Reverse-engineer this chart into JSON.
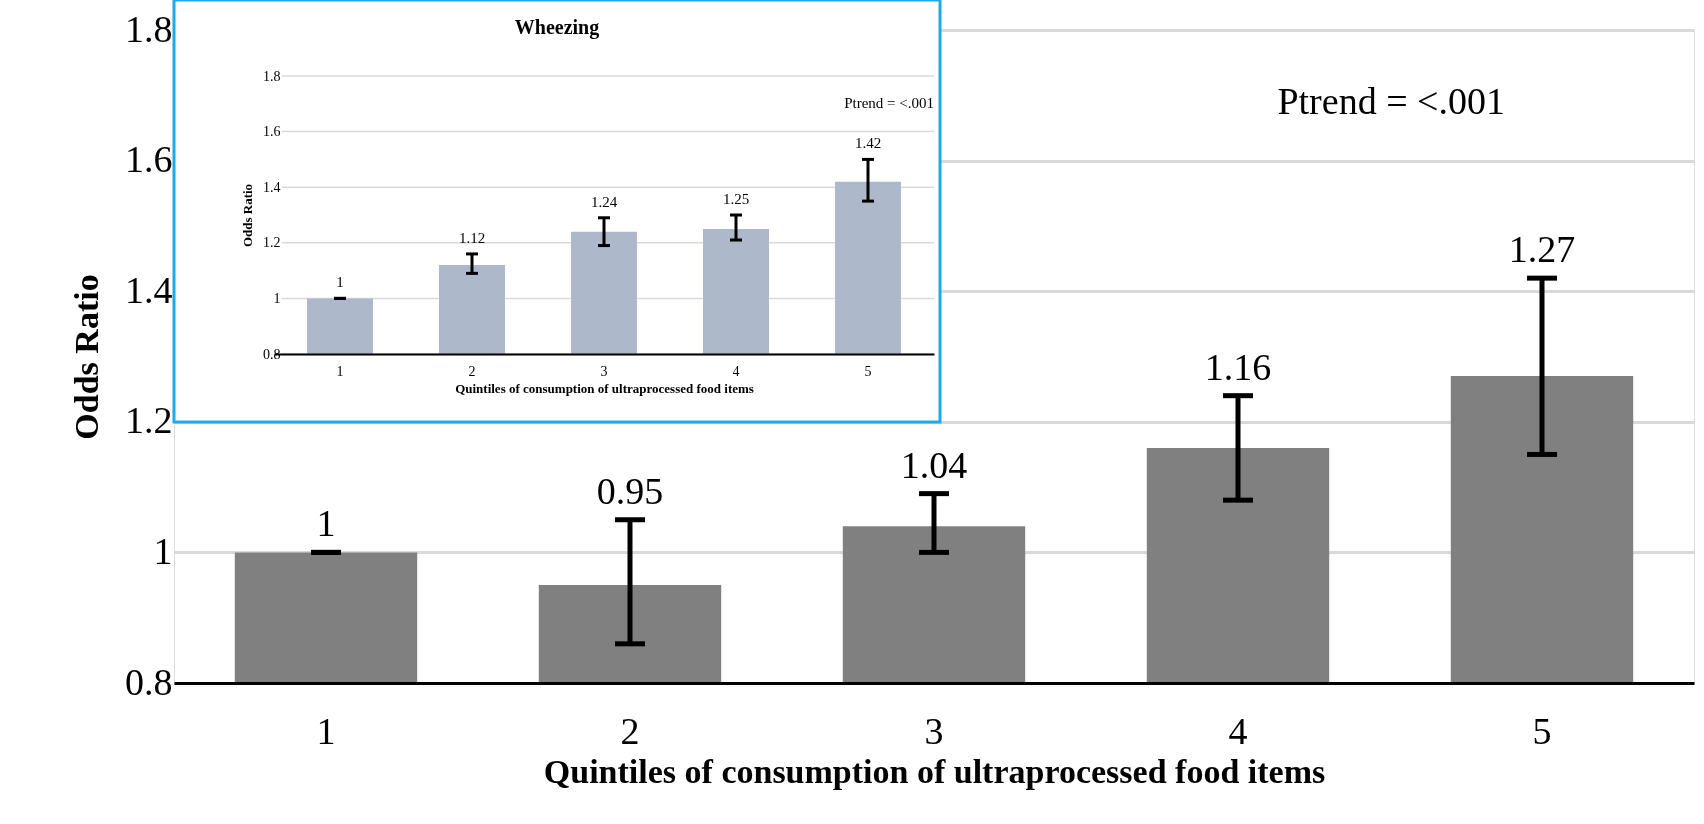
{
  "chart_data": [
    {
      "type": "bar",
      "xlabel": "Quintiles of consumption of ultraprocessed food items",
      "ylabel": "Odds Ratio",
      "categories": [
        "1",
        "2",
        "3",
        "4",
        "5"
      ],
      "values": [
        1,
        0.95,
        1.04,
        1.16,
        1.27
      ],
      "color": "#808080",
      "errors": [
        [
          1,
          1
        ],
        [
          0.86,
          1.05
        ],
        [
          1.0,
          1.09
        ],
        [
          1.08,
          1.24
        ],
        [
          1.15,
          1.42
        ]
      ],
      "ylim": [
        0.8,
        1.8
      ],
      "yticks": [
        0.8,
        1,
        1.2,
        1.4,
        1.6,
        1.8
      ],
      "grid": "y",
      "data_labels": true,
      "annotations": [
        "Ptrend = <.001"
      ]
    },
    {
      "type": "bar",
      "title": "Wheezing",
      "xlabel": "Quintiles of consumption of ultraprocessed food items",
      "ylabel": "Odds Ratio",
      "categories": [
        "1",
        "2",
        "3",
        "4",
        "5"
      ],
      "values": [
        1,
        1.12,
        1.24,
        1.25,
        1.42
      ],
      "color": "#adb9ca",
      "errors": [
        [
          1,
          1
        ],
        [
          1.09,
          1.16
        ],
        [
          1.19,
          1.29
        ],
        [
          1.21,
          1.3
        ],
        [
          1.35,
          1.5
        ]
      ],
      "ylim": [
        0.8,
        1.8
      ],
      "yticks": [
        0.8,
        1,
        1.2,
        1.4,
        1.6,
        1.8
      ],
      "grid": "y",
      "data_labels": true,
      "annotations": [
        "Ptrend = <.001"
      ]
    }
  ]
}
